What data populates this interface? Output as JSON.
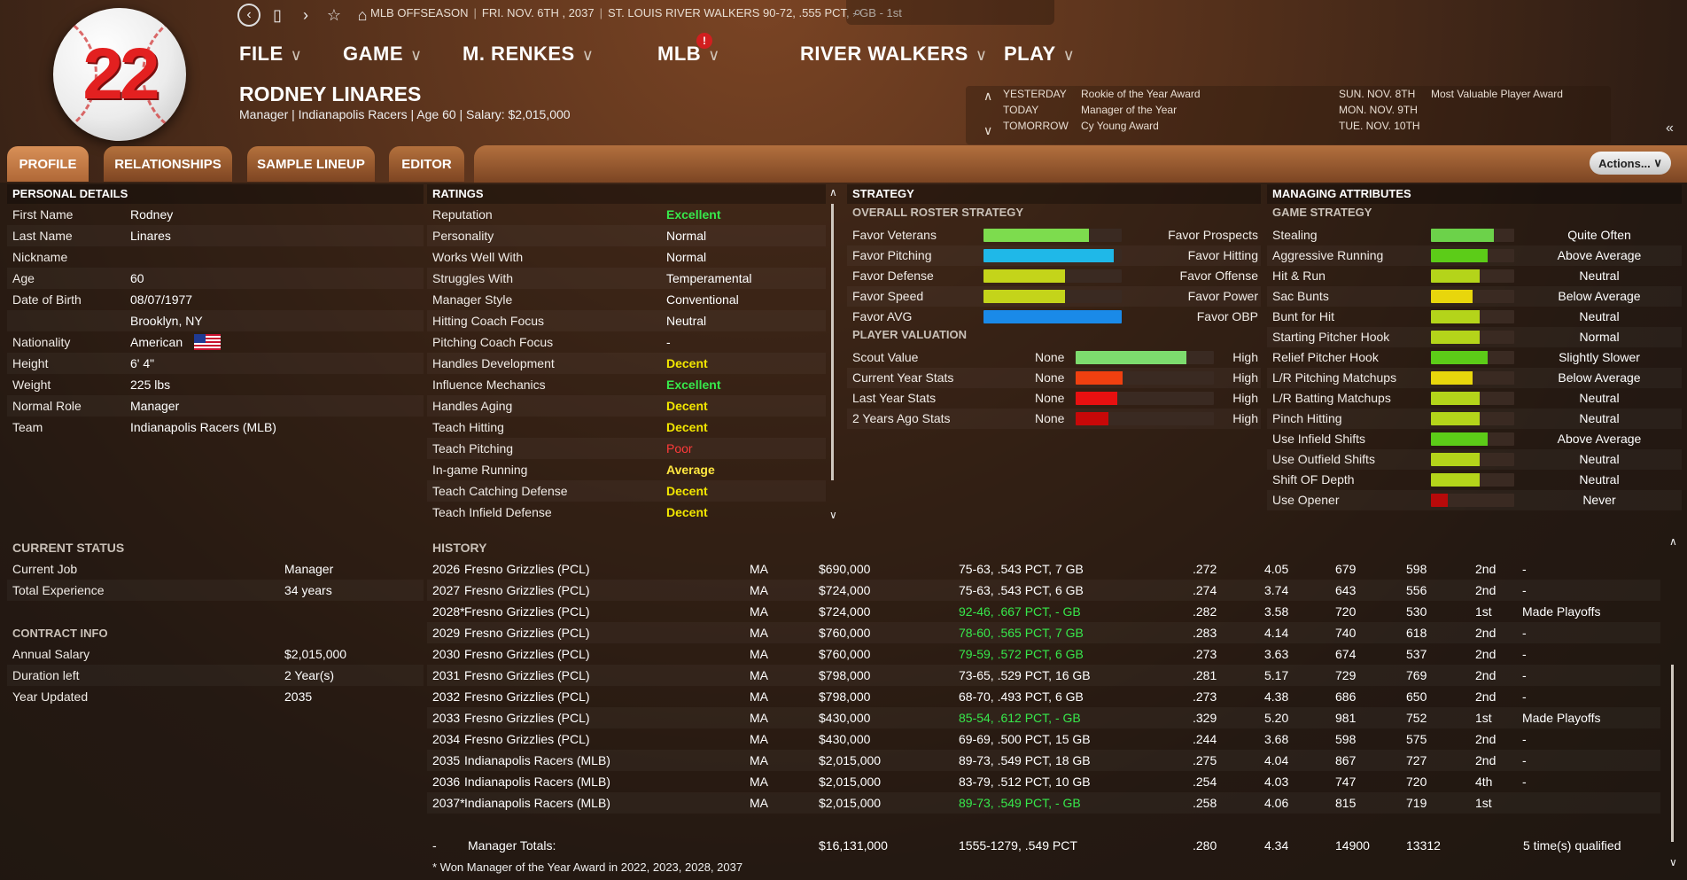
{
  "player_number": "22",
  "topbar": {
    "status": "MLB OFFSEASON",
    "date": "FRI. NOV. 6TH , 2037",
    "team_record": "ST. LOUIS RIVER WALKERS   90-72, .555 PCT, - GB - 1st"
  },
  "menu": {
    "file": "FILE",
    "game": "GAME",
    "manager": "M. RENKES",
    "mlb": "MLB",
    "team": "RIVER WALKERS",
    "play": "PLAY",
    "mlb_badge": "!"
  },
  "person": {
    "name": "RODNEY LINARES",
    "subtitle": "Manager | Indianapolis Racers  |  Age 60  |  Salary: $2,015,000"
  },
  "news": {
    "d1": "YESTERDAY",
    "e1": "Rookie of the Year Award",
    "d2": "TODAY",
    "e2": "Manager of the Year",
    "d3": "TOMORROW",
    "e3": "Cy Young Award",
    "d4": "SUN. NOV. 8TH",
    "e4": "Most Valuable Player Award",
    "d5": "MON. NOV. 9TH",
    "d6": "TUE. NOV. 10TH"
  },
  "tabs": {
    "profile": "PROFILE",
    "relationships": "RELATIONSHIPS",
    "lineup": "SAMPLE LINEUP",
    "editor": "EDITOR",
    "actions": "Actions..."
  },
  "personal": {
    "title": "PERSONAL DETAILS",
    "rows": [
      {
        "label": "First Name",
        "value": "Rodney"
      },
      {
        "label": "Last Name",
        "value": "Linares"
      },
      {
        "label": "Nickname",
        "value": ""
      },
      {
        "label": "Age",
        "value": "60"
      },
      {
        "label": "Date of Birth",
        "value": "08/07/1977"
      },
      {
        "label": "",
        "value": "Brooklyn, NY"
      },
      {
        "label": "Nationality",
        "value": "American"
      },
      {
        "label": "Height",
        "value": "6' 4\""
      },
      {
        "label": "Weight",
        "value": "225 lbs"
      },
      {
        "label": "Normal Role",
        "value": "Manager"
      },
      {
        "label": "Team",
        "value": "Indianapolis Racers (MLB)"
      }
    ]
  },
  "ratings": {
    "title": "RATINGS",
    "rows": [
      {
        "label": "Reputation",
        "value": "Excellent"
      },
      {
        "label": "Personality",
        "value": "Normal"
      },
      {
        "label": "Works Well With",
        "value": "Normal"
      },
      {
        "label": "Struggles With",
        "value": "Temperamental"
      },
      {
        "label": "Manager Style",
        "value": "Conventional"
      },
      {
        "label": "Hitting Coach Focus",
        "value": "Neutral"
      },
      {
        "label": "Pitching Coach Focus",
        "value": "-"
      },
      {
        "label": "Handles Development",
        "value": "Decent"
      },
      {
        "label": "Influence Mechanics",
        "value": "Excellent"
      },
      {
        "label": "Handles Aging",
        "value": "Decent"
      },
      {
        "label": "Teach Hitting",
        "value": "Decent"
      },
      {
        "label": "Teach Pitching",
        "value": "Poor"
      },
      {
        "label": "In-game Running",
        "value": "Average"
      },
      {
        "label": "Teach Catching Defense",
        "value": "Decent"
      },
      {
        "label": "Teach Infield Defense",
        "value": "Decent"
      }
    ]
  },
  "strategy": {
    "title": "STRATEGY",
    "overall_title": "OVERALL ROSTER STRATEGY",
    "overall": [
      {
        "left": "Favor Veterans",
        "right": "Favor Prospects",
        "level": 0.76,
        "color": "#7ddc4e"
      },
      {
        "left": "Favor Pitching",
        "right": "Favor Hitting",
        "level": 0.94,
        "color": "#1fb8e8"
      },
      {
        "left": "Favor Defense",
        "right": "Favor Offense",
        "level": 0.59,
        "color": "#c4d41a"
      },
      {
        "left": "Favor Speed",
        "right": "Favor Power",
        "level": 0.59,
        "color": "#c4d41a"
      },
      {
        "left": "Favor AVG",
        "right": "Favor OBP",
        "level": 1.0,
        "color": "#1a8ae8"
      }
    ],
    "valuation_title": "PLAYER VALUATION",
    "valuation": [
      {
        "label": "Scout Value",
        "low": "None",
        "high": "High",
        "level": 0.8,
        "color": "#7ddc6e"
      },
      {
        "label": "Current Year Stats",
        "low": "None",
        "high": "High",
        "level": 0.34,
        "color": "#f04010"
      },
      {
        "label": "Last Year Stats",
        "low": "None",
        "high": "High",
        "level": 0.3,
        "color": "#e81010"
      },
      {
        "label": "2 Years Ago Stats",
        "low": "None",
        "high": "High",
        "level": 0.24,
        "color": "#c80808"
      }
    ]
  },
  "managing": {
    "title": "MANAGING ATTRIBUTES",
    "sub": "GAME STRATEGY",
    "rows": [
      {
        "label": "Stealing",
        "value": "Quite Often",
        "level": 0.76,
        "color": "#6cd24a"
      },
      {
        "label": "Aggressive Running",
        "value": "Above Average",
        "level": 0.68,
        "color": "#5ccc18"
      },
      {
        "label": "Hit & Run",
        "value": "Neutral",
        "level": 0.59,
        "color": "#b4d41a"
      },
      {
        "label": "Sac Bunts",
        "value": "Below Average",
        "level": 0.5,
        "color": "#e8d60c"
      },
      {
        "label": "Bunt for Hit",
        "value": "Neutral",
        "level": 0.59,
        "color": "#b4d41a"
      },
      {
        "label": "Starting Pitcher Hook",
        "value": "Normal",
        "level": 0.59,
        "color": "#b4d41a"
      },
      {
        "label": "Relief Pitcher Hook",
        "value": "Slightly Slower",
        "level": 0.68,
        "color": "#5ccc18"
      },
      {
        "label": "L/R Pitching Matchups",
        "value": "Below Average",
        "level": 0.5,
        "color": "#e8d60c"
      },
      {
        "label": "L/R Batting Matchups",
        "value": "Neutral",
        "level": 0.59,
        "color": "#b4d41a"
      },
      {
        "label": "Pinch Hitting",
        "value": "Neutral",
        "level": 0.59,
        "color": "#b4d41a"
      },
      {
        "label": "Use Infield Shifts",
        "value": "Above Average",
        "level": 0.68,
        "color": "#5ccc18"
      },
      {
        "label": "Use Outfield Shifts",
        "value": "Neutral",
        "level": 0.59,
        "color": "#b4d41a"
      },
      {
        "label": "Shift OF Depth",
        "value": "Neutral",
        "level": 0.59,
        "color": "#b4d41a"
      },
      {
        "label": "Use Opener",
        "value": "Never",
        "level": 0.2,
        "color": "#b80a0a"
      }
    ]
  },
  "current": {
    "title": "CURRENT STATUS",
    "rows": [
      {
        "label": "Current Job",
        "value": "Manager"
      },
      {
        "label": "Total Experience",
        "value": "34 years"
      }
    ],
    "contract_title": "CONTRACT INFO",
    "contract": [
      {
        "label": "Annual Salary",
        "value": "$2,015,000"
      },
      {
        "label": "Duration left",
        "value": "2 Year(s)"
      },
      {
        "label": "Year Updated",
        "value": "2035"
      }
    ]
  },
  "history": {
    "title": "HISTORY",
    "rows": [
      {
        "year": "2026",
        "team": "Fresno Grizzlies (PCL)",
        "role": "MA",
        "salary": "$690,000",
        "record": "75-63, .543 PCT, 7 GB",
        "hl": false,
        "avg": ".272",
        "era": "4.05",
        "r": "679",
        "ra": "598",
        "pos": "2nd",
        "note": "-"
      },
      {
        "year": "2027",
        "team": "Fresno Grizzlies (PCL)",
        "role": "MA",
        "salary": "$724,000",
        "record": "75-63, .543 PCT, 6 GB",
        "hl": false,
        "avg": ".274",
        "era": "3.74",
        "r": "643",
        "ra": "556",
        "pos": "2nd",
        "note": "-"
      },
      {
        "year": "2028*",
        "team": "Fresno Grizzlies (PCL)",
        "role": "MA",
        "salary": "$724,000",
        "record": "92-46, .667 PCT, - GB",
        "hl": true,
        "avg": ".282",
        "era": "3.58",
        "r": "720",
        "ra": "530",
        "pos": "1st",
        "note": "Made Playoffs"
      },
      {
        "year": "2029",
        "team": "Fresno Grizzlies (PCL)",
        "role": "MA",
        "salary": "$760,000",
        "record": "78-60, .565 PCT, 7 GB",
        "hl": true,
        "avg": ".283",
        "era": "4.14",
        "r": "740",
        "ra": "618",
        "pos": "2nd",
        "note": "-"
      },
      {
        "year": "2030",
        "team": "Fresno Grizzlies (PCL)",
        "role": "MA",
        "salary": "$760,000",
        "record": "79-59, .572 PCT, 6 GB",
        "hl": true,
        "avg": ".273",
        "era": "3.63",
        "r": "674",
        "ra": "537",
        "pos": "2nd",
        "note": "-"
      },
      {
        "year": "2031",
        "team": "Fresno Grizzlies (PCL)",
        "role": "MA",
        "salary": "$798,000",
        "record": "73-65, .529 PCT, 16 GB",
        "hl": false,
        "avg": ".281",
        "era": "5.17",
        "r": "729",
        "ra": "769",
        "pos": "2nd",
        "note": "-"
      },
      {
        "year": "2032",
        "team": "Fresno Grizzlies (PCL)",
        "role": "MA",
        "salary": "$798,000",
        "record": "68-70, .493 PCT, 6 GB",
        "hl": false,
        "avg": ".273",
        "era": "4.38",
        "r": "686",
        "ra": "650",
        "pos": "2nd",
        "note": "-"
      },
      {
        "year": "2033",
        "team": "Fresno Grizzlies (PCL)",
        "role": "MA",
        "salary": "$430,000",
        "record": "85-54, .612 PCT, - GB",
        "hl": true,
        "avg": ".329",
        "era": "5.20",
        "r": "981",
        "ra": "752",
        "pos": "1st",
        "note": "Made Playoffs"
      },
      {
        "year": "2034",
        "team": "Fresno Grizzlies (PCL)",
        "role": "MA",
        "salary": "$430,000",
        "record": "69-69, .500 PCT, 15 GB",
        "hl": false,
        "avg": ".244",
        "era": "3.68",
        "r": "598",
        "ra": "575",
        "pos": "2nd",
        "note": "-"
      },
      {
        "year": "2035",
        "team": "Indianapolis Racers (MLB)",
        "role": "MA",
        "salary": "$2,015,000",
        "record": "89-73, .549 PCT, 18 GB",
        "hl": false,
        "avg": ".275",
        "era": "4.04",
        "r": "867",
        "ra": "727",
        "pos": "2nd",
        "note": "-"
      },
      {
        "year": "2036",
        "team": "Indianapolis Racers (MLB)",
        "role": "MA",
        "salary": "$2,015,000",
        "record": "83-79, .512 PCT, 10 GB",
        "hl": false,
        "avg": ".254",
        "era": "4.03",
        "r": "747",
        "ra": "720",
        "pos": "4th",
        "note": "-"
      },
      {
        "year": "2037*",
        "team": "Indianapolis Racers (MLB)",
        "role": "MA",
        "salary": "$2,015,000",
        "record": "89-73, .549 PCT, - GB",
        "hl": true,
        "avg": ".258",
        "era": "4.06",
        "r": "815",
        "ra": "719",
        "pos": "1st",
        "note": ""
      }
    ],
    "totals": {
      "dash": "-",
      "label": "Manager Totals:",
      "salary": "$16,131,000",
      "record": "1555-1279, .549 PCT",
      "avg": ".280",
      "era": "4.34",
      "r": "14900",
      "ra": "13312",
      "note": "5 time(s) qualified"
    },
    "footnote": "* Won Manager of the Year Award in 2022, 2023, 2028, 2037"
  }
}
